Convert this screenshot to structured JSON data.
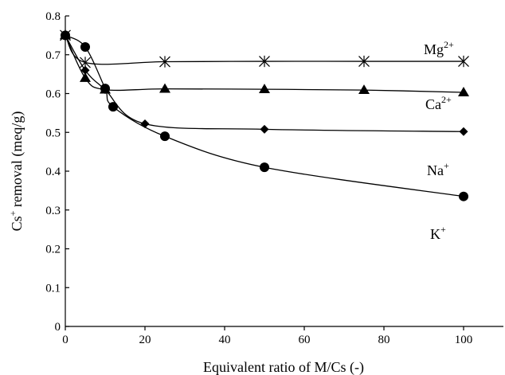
{
  "chart_data": {
    "type": "line",
    "title": "",
    "xlabel": "Equivalent ratio of M/Cs (-)",
    "ylabel": {
      "base": "Cs",
      "sup": "+",
      "rest": " removal (meq/g)"
    },
    "xlim": [
      0,
      110
    ],
    "ylim": [
      0,
      0.8
    ],
    "xticks": [
      0,
      20,
      40,
      60,
      80,
      100
    ],
    "yticks": [
      0,
      0.1,
      0.2,
      0.3,
      0.4,
      0.5,
      0.6,
      0.7,
      0.8
    ],
    "grid": false,
    "legend": "none (series labeled inline)",
    "series": [
      {
        "name": "Mg",
        "sup": "2+",
        "marker": "asterisk",
        "x": [
          0,
          5,
          25,
          50,
          75,
          100
        ],
        "y": [
          0.75,
          0.68,
          0.682,
          0.683,
          0.683,
          0.683
        ]
      },
      {
        "name": "Ca",
        "sup": "2+",
        "marker": "triangle",
        "x": [
          0,
          5,
          10,
          25,
          50,
          75,
          100
        ],
        "y": [
          0.75,
          0.64,
          0.61,
          0.612,
          0.611,
          0.609,
          0.603
        ]
      },
      {
        "name": "Na",
        "sup": "+",
        "marker": "diamond",
        "x": [
          0,
          5,
          10,
          20,
          50,
          100
        ],
        "y": [
          0.75,
          0.66,
          0.61,
          0.522,
          0.508,
          0.502
        ]
      },
      {
        "name": "K",
        "sup": "+",
        "marker": "circle",
        "x": [
          0,
          5,
          10,
          12,
          25,
          50,
          100
        ],
        "y": [
          0.75,
          0.72,
          0.613,
          0.566,
          0.49,
          0.41,
          0.335
        ]
      }
    ]
  }
}
